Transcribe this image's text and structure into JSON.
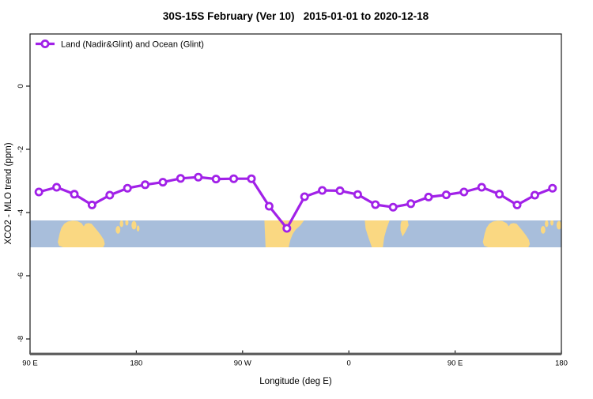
{
  "title": "30S-15S February (Ver 10)   2015-01-01 to 2020-12-18",
  "legend": {
    "label": "Land (Nadir&Glint) and Ocean (Glint)"
  },
  "colors": {
    "line": "#A121E8",
    "marker_fill": "#ffffff",
    "ocean": "#A8BEDB",
    "land": "#FAD882",
    "frame": "#1a1a1a",
    "axis_heavy": "#565656",
    "text": "#000000"
  },
  "chart_data": {
    "type": "line",
    "title": "30S-15S February (Ver 10)   2015-01-01 to 2020-12-18",
    "xlabel": "Longitude (deg E)",
    "ylabel": "XCO2 - MLO trend (ppm)",
    "x_axis_note": "x axis spans 450 deg starting at 90E, wrapping east through 180, 90W, 0, 90E to 180",
    "x_ticks": [
      {
        "deg": 0,
        "label": "90 E"
      },
      {
        "deg": 90,
        "label": "180"
      },
      {
        "deg": 180,
        "label": "90 W"
      },
      {
        "deg": 270,
        "label": "0"
      },
      {
        "deg": 360,
        "label": "90 E"
      },
      {
        "deg": 450,
        "label": "180"
      }
    ],
    "y_ticks": [
      {
        "value": 0,
        "label": "0"
      },
      {
        "value": -2,
        "label": "-2"
      },
      {
        "value": -4,
        "label": "-4"
      },
      {
        "value": -6,
        "label": "-6"
      },
      {
        "value": -8,
        "label": "-8"
      }
    ],
    "ylim": [
      -8.45,
      1.65
    ],
    "grid": false,
    "legend_position": "top-left-inside",
    "series": [
      {
        "name": "Land (Nadir&Glint) and Ocean (Glint)",
        "points": [
          {
            "lon": "97.5E",
            "deg": 7.5,
            "value": -3.35
          },
          {
            "lon": "112.5E",
            "deg": 22.5,
            "value": -3.2
          },
          {
            "lon": "127.5E",
            "deg": 37.5,
            "value": -3.42
          },
          {
            "lon": "142.5E",
            "deg": 52.5,
            "value": -3.76
          },
          {
            "lon": "157.5E",
            "deg": 67.5,
            "value": -3.45
          },
          {
            "lon": "172.5E",
            "deg": 82.5,
            "value": -3.23
          },
          {
            "lon": "172.5W",
            "deg": 97.5,
            "value": -3.12
          },
          {
            "lon": "157.5W",
            "deg": 112.5,
            "value": -3.04
          },
          {
            "lon": "142.5W",
            "deg": 127.5,
            "value": -2.92
          },
          {
            "lon": "127.5W",
            "deg": 142.5,
            "value": -2.88
          },
          {
            "lon": "112.5W",
            "deg": 157.5,
            "value": -2.94
          },
          {
            "lon": "97.5W",
            "deg": 172.5,
            "value": -2.93
          },
          {
            "lon": "82.5W",
            "deg": 187.5,
            "value": -2.93
          },
          {
            "lon": "67.5W",
            "deg": 202.5,
            "value": -3.8
          },
          {
            "lon": "52.5W",
            "deg": 217.5,
            "value": -4.5
          },
          {
            "lon": "37.5W",
            "deg": 232.5,
            "value": -3.5
          },
          {
            "lon": "22.5W",
            "deg": 247.5,
            "value": -3.3
          },
          {
            "lon": "7.5W",
            "deg": 262.5,
            "value": -3.31
          },
          {
            "lon": "7.5E",
            "deg": 277.5,
            "value": -3.43
          },
          {
            "lon": "22.5E",
            "deg": 292.5,
            "value": -3.75
          },
          {
            "lon": "37.5E",
            "deg": 307.5,
            "value": -3.83
          },
          {
            "lon": "52.5E",
            "deg": 322.5,
            "value": -3.72
          },
          {
            "lon": "67.5E",
            "deg": 337.5,
            "value": -3.51
          },
          {
            "lon": "82.5E",
            "deg": 352.5,
            "value": -3.44
          },
          {
            "lon": "97.5E",
            "deg": 367.5,
            "value": -3.35
          },
          {
            "lon": "112.5E",
            "deg": 382.5,
            "value": -3.2
          },
          {
            "lon": "127.5E",
            "deg": 397.5,
            "value": -3.42
          },
          {
            "lon": "142.5E",
            "deg": 412.5,
            "value": -3.76
          },
          {
            "lon": "157.5E",
            "deg": 427.5,
            "value": -3.45
          },
          {
            "lon": "172.5E",
            "deg": 442.5,
            "value": -3.23
          }
        ]
      }
    ],
    "map_band": {
      "description": "land-ocean strip for the 30S-15S latitude band",
      "value_top": -4.25,
      "value_bottom": -5.1,
      "repeat_offset_deg": 360,
      "land_polygons": {
        "australia": [
          [
            23.5,
            0.8
          ],
          [
            25,
            0.5
          ],
          [
            26.5,
            0.28
          ],
          [
            29,
            0.12
          ],
          [
            32,
            0.04
          ],
          [
            36,
            0.01
          ],
          [
            40,
            0.02
          ],
          [
            43.5,
            0.1
          ],
          [
            45.5,
            0.22
          ],
          [
            47,
            0.12
          ],
          [
            49.5,
            0.1
          ],
          [
            52,
            0.12
          ],
          [
            54,
            0.22
          ],
          [
            57,
            0.38
          ],
          [
            60,
            0.55
          ],
          [
            62.5,
            0.72
          ],
          [
            63.3,
            0.88
          ],
          [
            62,
            1.0
          ],
          [
            28,
            1.0
          ],
          [
            24.5,
            0.94
          ]
        ],
        "south_america": [
          [
            198.5,
            0
          ],
          [
            232,
            0
          ],
          [
            229,
            0.18
          ],
          [
            225,
            0.34
          ],
          [
            222.5,
            0.5
          ],
          [
            220.5,
            0.72
          ],
          [
            219,
            1.0
          ],
          [
            199.5,
            1.0
          ]
        ],
        "africa": [
          [
            283.5,
            0
          ],
          [
            304.5,
            0
          ],
          [
            302,
            0.3
          ],
          [
            300,
            0.62
          ],
          [
            298.8,
            1.0
          ],
          [
            289.5,
            1.0
          ],
          [
            286.5,
            0.62
          ],
          [
            284.2,
            0.3
          ]
        ],
        "madagascar": [
          [
            314.5,
            0.02
          ],
          [
            319.8,
            0.0
          ],
          [
            320.6,
            0.18
          ],
          [
            318,
            0.42
          ],
          [
            315.5,
            0.6
          ],
          [
            313.8,
            0.38
          ],
          [
            313.8,
            0.15
          ]
        ]
      },
      "islands": [
        {
          "deg": 74.5,
          "frac": 0.35,
          "rdeg": 1.3,
          "rfrac": 0.09
        },
        {
          "deg": 77.5,
          "frac": 0.12,
          "rdeg": 1.0,
          "rfrac": 0.08
        },
        {
          "deg": 82.0,
          "frac": 0.08,
          "rdeg": 0.9,
          "rfrac": 0.07
        },
        {
          "deg": 88.0,
          "frac": 0.18,
          "rdeg": 1.4,
          "rfrac": 0.1
        },
        {
          "deg": 91.5,
          "frac": 0.3,
          "rdeg": 0.8,
          "rfrac": 0.07
        }
      ]
    }
  }
}
